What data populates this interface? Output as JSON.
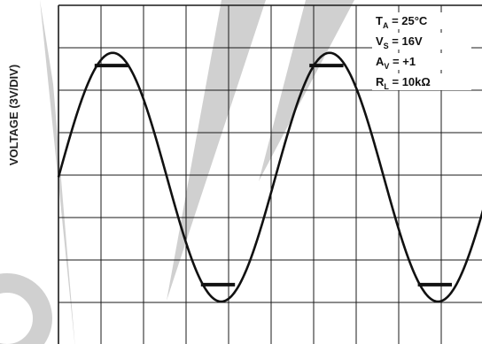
{
  "chart_data": {
    "type": "line",
    "title": "",
    "xlabel": "",
    "ylabel": "VOLTAGE (3V/DIV)",
    "x_divisions": 10,
    "y_divisions": 8,
    "grid": true,
    "conditions": [
      {
        "name": "T",
        "sub": "A",
        "rest": " = 25°C"
      },
      {
        "name": "V",
        "sub": "S",
        "rest": " = 16V"
      },
      {
        "name": "A",
        "sub": "V",
        "rest": " = +1"
      },
      {
        "name": "R",
        "sub": "L",
        "rest": " = 10kΩ"
      }
    ],
    "legend_position": "top-right",
    "series": [
      {
        "waveform": "sine",
        "x_unit": "div",
        "y_unit": "div",
        "period_div": 5.1,
        "amplitude_div": 2.93,
        "offset_div": -0.05,
        "phase_deg": 0,
        "start_div": 0,
        "end_div": 10,
        "clip_markers": [
          {
            "x_div": 1.25,
            "y_div": 2.58,
            "width_div": 0.8
          },
          {
            "x_div": 6.3,
            "y_div": 2.58,
            "width_div": 0.8
          },
          {
            "x_div": 3.75,
            "y_div": -2.58,
            "width_div": 0.8
          },
          {
            "x_div": 8.85,
            "y_div": -2.58,
            "width_div": 0.8
          }
        ]
      }
    ],
    "colors": {
      "trace": "#111111",
      "grid": "#1a1a1a",
      "watermark": "#c8c8c8"
    }
  }
}
